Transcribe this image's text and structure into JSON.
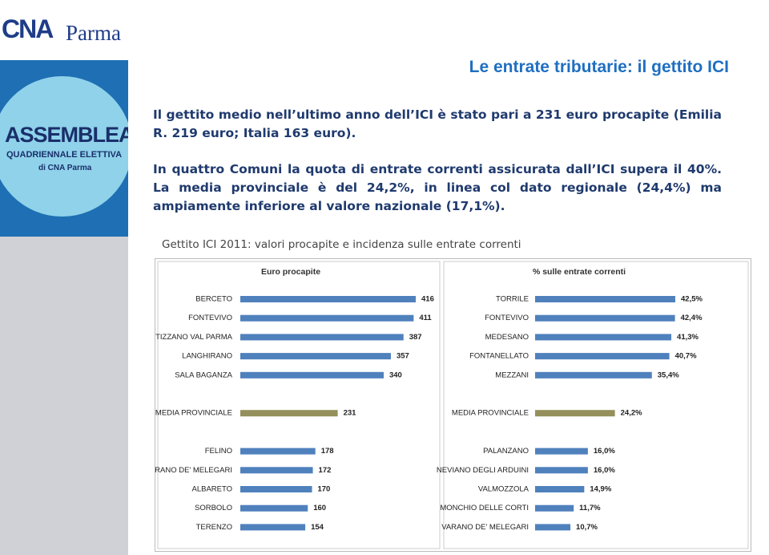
{
  "logo": {
    "brand": "CNA",
    "city": "Parma"
  },
  "poster": {
    "line1": "ASSEMBLEA",
    "line2": "QUADRIENNALE ELETTIVA",
    "line3": "di CNA Parma"
  },
  "slide": {
    "title": "Le entrate tributarie: il gettito ICI",
    "paragraph1": "Il gettito medio nell’ultimo anno dell’ICI è stato pari a 231 euro procapite (Emilia R. 219 euro; Italia 163 euro).",
    "paragraph2": "In quattro Comuni la quota di entrate correnti assicurata dall’ICI supera il 40%. La media provinciale è del 24,2%, in linea col dato regionale (24,4%) ma ampiamente inferiore al valore nazionale (17,1%).",
    "chart_caption": "Gettito ICI 2011: valori procapite e incidenza sulle entrate correnti"
  },
  "chart_data": [
    {
      "type": "bar",
      "orientation": "horizontal",
      "title": "Euro procapite",
      "categories": [
        "BERCETO",
        "FONTEVIVO",
        "TIZZANO VAL PARMA",
        "LANGHIRANO",
        "SALA BAGANZA",
        null,
        "MEDIA PROVINCIALE",
        null,
        "FELINO",
        "VARANO DE' MELEGARI",
        "ALBARETO",
        "SORBOLO",
        "TERENZO"
      ],
      "values": [
        416,
        411,
        387,
        357,
        340,
        null,
        231,
        null,
        178,
        172,
        170,
        160,
        154
      ],
      "colors": [
        "#4f81bd",
        "#4f81bd",
        "#4f81bd",
        "#4f81bd",
        "#4f81bd",
        null,
        "#958f5c",
        null,
        "#4f81bd",
        "#4f81bd",
        "#4f81bd",
        "#4f81bd",
        "#4f81bd"
      ]
    },
    {
      "type": "bar",
      "orientation": "horizontal",
      "title": "% sulle entrate correnti",
      "categories": [
        "TORRILE",
        "FONTEVIVO",
        "MEDESANO",
        "FONTANELLATO",
        "MEZZANI",
        null,
        "MEDIA PROVINCIALE",
        null,
        "PALANZANO",
        "NEVIANO DEGLI ARDUINI",
        "VALMOZZOLA",
        "MONCHIO DELLE CORTI",
        "VARANO DE' MELEGARI"
      ],
      "values": [
        42.5,
        42.4,
        41.3,
        40.7,
        35.4,
        null,
        24.2,
        null,
        16.0,
        16.0,
        14.9,
        11.7,
        10.7
      ],
      "value_labels": [
        "42,5%",
        "42,4%",
        "41,3%",
        "40,7%",
        "35,4%",
        null,
        "24,2%",
        null,
        "16,0%",
        "16,0%",
        "14,9%",
        "11,7%",
        "10,7%"
      ],
      "colors": [
        "#4f81bd",
        "#4f81bd",
        "#4f81bd",
        "#4f81bd",
        "#4f81bd",
        null,
        "#958f5c",
        null,
        "#4f81bd",
        "#4f81bd",
        "#4f81bd",
        "#4f81bd",
        "#4f81bd"
      ]
    }
  ]
}
